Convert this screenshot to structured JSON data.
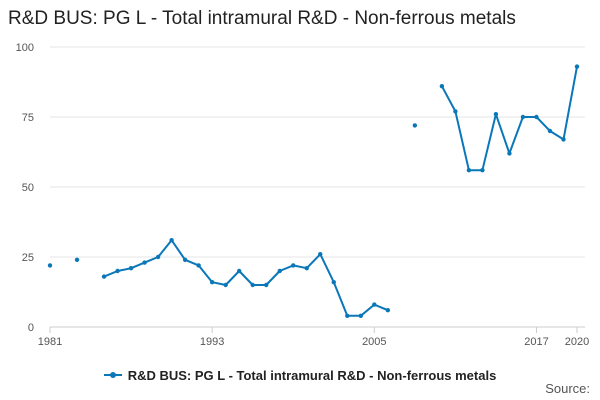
{
  "chart_data": {
    "type": "line",
    "title": "R&D BUS: PG L - Total intramural R&D - Non-ferrous metals",
    "xlabel": "",
    "ylabel": "",
    "x": [
      1981,
      1982,
      1983,
      1984,
      1985,
      1986,
      1987,
      1988,
      1989,
      1990,
      1991,
      1992,
      1993,
      1994,
      1995,
      1996,
      1997,
      1998,
      1999,
      2000,
      2001,
      2002,
      2003,
      2004,
      2005,
      2006,
      2007,
      2008,
      2009,
      2010,
      2011,
      2012,
      2013,
      2014,
      2015,
      2016,
      2017,
      2018,
      2019,
      2020
    ],
    "series": [
      {
        "name": "R&D BUS: PG L - Total intramural R&D - Non-ferrous metals",
        "values": [
          22,
          null,
          24,
          null,
          18,
          20,
          21,
          23,
          25,
          31,
          24,
          22,
          16,
          15,
          20,
          15,
          15,
          20,
          22,
          21,
          26,
          16,
          4,
          4,
          8,
          6,
          null,
          72,
          null,
          86,
          77,
          56,
          56,
          76,
          62,
          75,
          75,
          70,
          67,
          93
        ]
      }
    ],
    "xticks": [
      1981,
      1993,
      2005,
      2017,
      2020
    ],
    "yticks": [
      0,
      25,
      50,
      75,
      100
    ],
    "xlim": [
      1981,
      2020
    ],
    "ylim": [
      0,
      100
    ],
    "grid": true,
    "legend_position": "bottom",
    "line_color": "#0a77b9",
    "grid_color": "#e5e5e5",
    "axis_color": "#cccccc"
  },
  "legend": {
    "label": "R&D BUS: PG L - Total intramural R&D - Non-ferrous metals"
  },
  "source": {
    "label": "Source:"
  }
}
